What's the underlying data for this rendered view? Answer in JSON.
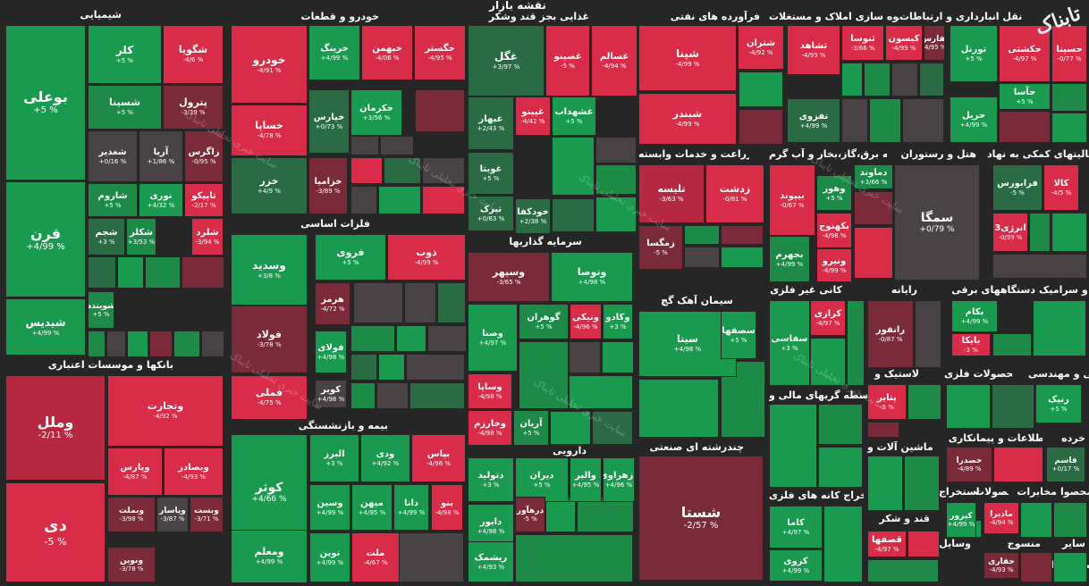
{
  "header": {
    "title": "نقشه بازار"
  },
  "logo": {
    "text": "تابناک"
  },
  "watermark": {
    "text": "سایت خبری تحلیلی تابناک"
  },
  "colors": {
    "up_strong": "#1a9a4e",
    "up": "#1e8a47",
    "up_dim": "#2a6b44",
    "down_strong": "#d82c48",
    "down": "#b5283f",
    "down_dim": "#7a2a38",
    "neutral": "#4a4346",
    "background": "#262626"
  },
  "sectors": [
    {
      "name": "شیمیایی"
    },
    {
      "name": "خودرو و قطعات"
    },
    {
      "name": "غذایی بجز قند وشکر"
    },
    {
      "name": "فرآورده های نفتی"
    },
    {
      "name": "انبوه سازی املاک و مستغلات"
    },
    {
      "name": "و نقل انبارداری و ارتباطات"
    },
    {
      "name": "بانکها و موسسات اعتباری"
    },
    {
      "name": "فلزات اساسی"
    },
    {
      "name": "سرمایه گذاریها"
    },
    {
      "name": "زراعت و خدمات وابسته"
    },
    {
      "name": "عرضه برق،گاز،بخار و آب گرم"
    },
    {
      "name": "هتل و رستوران"
    },
    {
      "name": "فعالیتهای کمکی به نهاد"
    },
    {
      "name": "سیمان آهک گچ"
    },
    {
      "name": "کانی غیر فلزی"
    },
    {
      "name": "رایانه"
    },
    {
      "name": "دستگاههای برقی"
    },
    {
      "name": "کاشی و سرامیک"
    },
    {
      "name": "بیمه و بازنشستگی"
    },
    {
      "name": "دارویی"
    },
    {
      "name": "چندرشته ای صنعتی"
    },
    {
      "name": "واسطه گریهای مالی و"
    },
    {
      "name": "لاستیک و"
    },
    {
      "name": "محصولات فلزی"
    },
    {
      "name": "فنی و مهندسی"
    },
    {
      "name": "ماشین آلات و"
    },
    {
      "name": "پیمانکاری"
    },
    {
      "name": "اطلاعات و"
    },
    {
      "name": "خرده"
    },
    {
      "name": "استخراج کانه های فلزی"
    },
    {
      "name": "قند و شکر"
    },
    {
      "name": "استخراج"
    },
    {
      "name": "محصولات"
    },
    {
      "name": "مخابرات"
    },
    {
      "name": "محصوا"
    },
    {
      "name": "منسوج"
    },
    {
      "name": "ساير"
    },
    {
      "name": "وسایل"
    },
    {
      "name": "محـ فعاا"
    }
  ],
  "tiles": [
    {
      "s": "بوعلی",
      "p": "+5 %"
    },
    {
      "s": "قرن",
      "p": "+4/99 %"
    },
    {
      "s": "شیدیس",
      "p": "+4/99 %"
    },
    {
      "s": "کلر",
      "p": "+5 %"
    },
    {
      "s": "شگویا",
      "p": "-4/6 %"
    },
    {
      "s": "شسینا",
      "p": "+5 %"
    },
    {
      "s": "پترول",
      "p": "-3/39 %"
    },
    {
      "s": "شغدیر",
      "p": "+0/16 %"
    },
    {
      "s": "آریا",
      "p": "+1/86 %"
    },
    {
      "s": "زاگرس",
      "p": "-0/95 %"
    },
    {
      "s": "شاروم",
      "p": "+5 %"
    },
    {
      "s": "نوری",
      "p": "+4/32 %"
    },
    {
      "s": "تاپیکو",
      "p": "-2/17 %"
    },
    {
      "s": "شجم",
      "p": "+3 %"
    },
    {
      "s": "شکلر",
      "p": "+3/53 %"
    },
    {
      "s": "شلرد",
      "p": "-3/94 %"
    },
    {
      "s": "شوینده",
      "p": "+5 %"
    },
    {
      "s": "خودرو",
      "p": "-4/91 %"
    },
    {
      "s": "خساپا",
      "p": "-4/78 %"
    },
    {
      "s": "خزر",
      "p": "+4/9 %"
    },
    {
      "s": "خرینگ",
      "p": "+4/99 %"
    },
    {
      "s": "خبهمن",
      "p": "-4/06 %"
    },
    {
      "s": "خگستر",
      "p": "-4/95 %"
    },
    {
      "s": "خپارس",
      "p": "+0/73 %"
    },
    {
      "s": "خکرمان",
      "p": "+3/56 %"
    },
    {
      "s": "خزامیا",
      "p": "-3/89 %"
    },
    {
      "s": "غگل",
      "p": "+3/97 %"
    },
    {
      "s": "غصینو",
      "p": "-5 %"
    },
    {
      "s": "غسالم",
      "p": "-4/94 %"
    },
    {
      "s": "غبهار",
      "p": "+2/43 %"
    },
    {
      "s": "غپینو",
      "p": "-4/42 %"
    },
    {
      "s": "غشهداب",
      "p": "+5 %"
    },
    {
      "s": "غویتا",
      "p": "+5 %"
    },
    {
      "s": "تبرک",
      "p": "+0/83 %"
    },
    {
      "s": "خودکفا",
      "p": "+2/38 %"
    },
    {
      "s": "شپنا",
      "p": "-4/99 %"
    },
    {
      "s": "شتران",
      "p": "-4/92 %"
    },
    {
      "s": "شبندر",
      "p": "-4/99 %"
    },
    {
      "s": "ثشاهد",
      "p": "-4/99 %"
    },
    {
      "s": "ثنوسا",
      "p": "-3/66 %"
    },
    {
      "s": "کیسون",
      "p": "-4/99 %"
    },
    {
      "s": "ثفارس",
      "p": "-4/95 %"
    },
    {
      "s": "تفزوی",
      "p": "+4/99 %"
    },
    {
      "s": "تورنل",
      "p": "+5 %"
    },
    {
      "s": "حکشتی",
      "p": "-4/97 %"
    },
    {
      "s": "حسینا",
      "p": "-0/77 %"
    },
    {
      "s": "حآسا",
      "p": "+5 %"
    },
    {
      "s": "حریل",
      "p": "+4/99 %"
    },
    {
      "s": "وملل",
      "p": "-2/11 %"
    },
    {
      "s": "دی",
      "p": "-5 %"
    },
    {
      "s": "وتجارت",
      "p": "-4/92 %"
    },
    {
      "s": "وپارس",
      "p": "-4/87 %"
    },
    {
      "s": "وبصادر",
      "p": "-4/93 %"
    },
    {
      "s": "وبملت",
      "p": "-3/98 %"
    },
    {
      "s": "وپاسار",
      "p": "-3/87 %"
    },
    {
      "s": "وبست",
      "p": "-3/71 %"
    },
    {
      "s": "ونوین",
      "p": "-3/78 %"
    },
    {
      "s": "وسدید",
      "p": "+3/8 %"
    },
    {
      "s": "فروی",
      "p": "+5 %"
    },
    {
      "s": "ذوب",
      "p": "-4/99 %"
    },
    {
      "s": "هرمز",
      "p": "-4/72 %"
    },
    {
      "s": "فولاد",
      "p": "-3/78 %"
    },
    {
      "s": "فولای",
      "p": "+4/98 %"
    },
    {
      "s": "فملی",
      "p": "-4/75 %"
    },
    {
      "s": "کویر",
      "p": "+4/98 %"
    },
    {
      "s": "وسپهر",
      "p": "-3/65 %"
    },
    {
      "s": "وتوصا",
      "p": "+4/98 %"
    },
    {
      "s": "وصنا",
      "p": "+4/97 %"
    },
    {
      "s": "گوهران",
      "p": "+5 %"
    },
    {
      "s": "ونیکی",
      "p": "-4/96 %"
    },
    {
      "s": "وکادو",
      "p": "+3 %"
    },
    {
      "s": "وساپا",
      "p": "-4/98 %"
    },
    {
      "s": "وخارزم",
      "p": "-4/98 %"
    },
    {
      "s": "آریان",
      "p": "+5 %"
    },
    {
      "s": "تلیسه",
      "p": "-3/63 %"
    },
    {
      "s": "زدشت",
      "p": "-0/81 %"
    },
    {
      "s": "زمگسا",
      "p": "-5 %"
    },
    {
      "s": "بیپوند",
      "p": "-0/67 %"
    },
    {
      "s": "دماوند",
      "p": "+3/66 %"
    },
    {
      "s": "وهور",
      "p": "+5 %"
    },
    {
      "s": "بکهنوج",
      "p": "-4/98 %"
    },
    {
      "s": "بجهرم",
      "p": "+4/99 %"
    },
    {
      "s": "ونیرو",
      "p": "-4/99 %"
    },
    {
      "s": "سمگا",
      "p": "+0/79 %"
    },
    {
      "s": "فرابورس",
      "p": "-5 %"
    },
    {
      "s": "کالا",
      "p": "-4/5 %"
    },
    {
      "s": "انرژی3",
      "p": "-0/59 %"
    },
    {
      "s": "سیتا",
      "p": "+4/98 %"
    },
    {
      "s": "سصفها",
      "p": "+5 %"
    },
    {
      "s": "سفاسی",
      "p": "+3 %"
    },
    {
      "s": "کرازی",
      "p": "-4/97 %"
    },
    {
      "s": "رانفور",
      "p": "-0/87 %"
    },
    {
      "s": "بکام",
      "p": "+4/99 %"
    },
    {
      "s": "بایکا",
      "p": "-3 %"
    },
    {
      "s": "کوثر",
      "p": "+4/66 %"
    },
    {
      "s": "البرز",
      "p": "+3 %"
    },
    {
      "s": "ودی",
      "p": "+4/92 %"
    },
    {
      "s": "بپاس",
      "p": "-4/96 %"
    },
    {
      "s": "ومعلم",
      "p": "+4/99 %"
    },
    {
      "s": "وسین",
      "p": "+4/99 %"
    },
    {
      "s": "میهن",
      "p": "+4/95 %"
    },
    {
      "s": "دانا",
      "p": "+4/99 %"
    },
    {
      "s": "بنو",
      "p": "-4/98 %"
    },
    {
      "s": "نوین",
      "p": "+4/99 %"
    },
    {
      "s": "ملت",
      "p": "-4/67 %"
    },
    {
      "s": "دتولید",
      "p": "+3 %"
    },
    {
      "s": "دیران",
      "p": "+5 %"
    },
    {
      "s": "والبر",
      "p": "+4/95 %"
    },
    {
      "s": "دزهراوی",
      "p": "+4/96 %"
    },
    {
      "s": "درهآور",
      "p": "-5 %"
    },
    {
      "s": "دابور",
      "p": "+4/98 %"
    },
    {
      "s": "ریشمک",
      "p": "+4/93 %"
    },
    {
      "s": "شستا",
      "p": "-2/57 %"
    },
    {
      "s": "کاما",
      "p": "+4/97 %"
    },
    {
      "s": "کروی",
      "p": "+4/99 %"
    },
    {
      "s": "پتایر",
      "p": "-5 %"
    },
    {
      "s": "رنیک",
      "p": "+5 %"
    },
    {
      "s": "قصفها",
      "p": "-4/97 %"
    },
    {
      "s": "خصدرا",
      "p": "-4/89 %"
    },
    {
      "s": "قاسم",
      "p": "+0/17 %"
    },
    {
      "s": "کپرور",
      "p": "+4/99 %"
    },
    {
      "s": "مادیرا",
      "p": "-4/94 %"
    },
    {
      "s": "حفاری",
      "p": "-4/93 %"
    }
  ]
}
